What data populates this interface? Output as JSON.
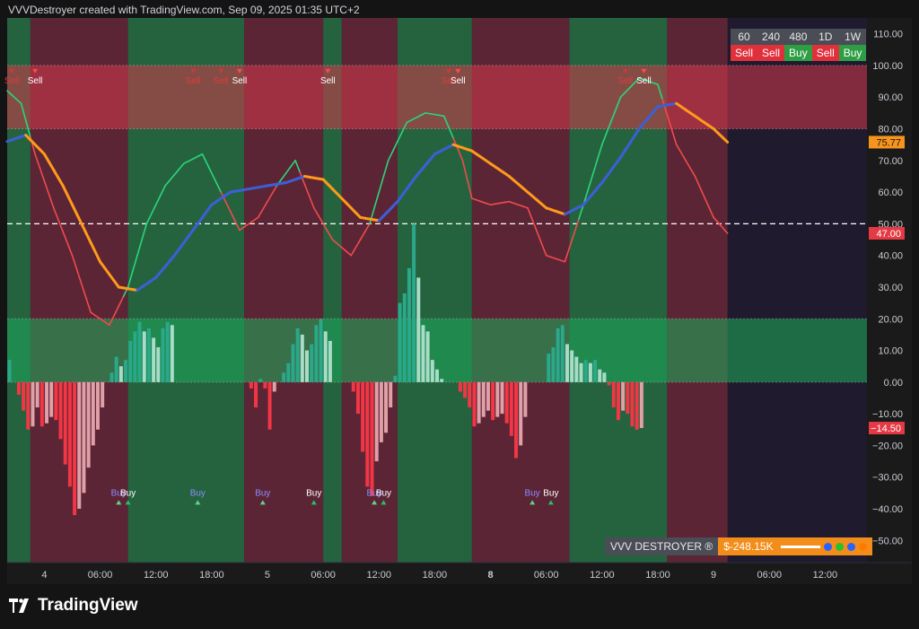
{
  "header": {
    "text": "VVVDestroyer created with TradingView.com, Sep 09, 2025 01:35 UTC+2"
  },
  "brand": {
    "logo_text": "TradingView"
  },
  "timeframes": {
    "labels": [
      "60",
      "240",
      "480",
      "1D",
      "1W"
    ],
    "signals": [
      "Sell",
      "Sell",
      "Buy",
      "Sell",
      "Buy"
    ]
  },
  "badge": {
    "name": "VVV DESTROYER ®",
    "pnl": "$-248.15K"
  },
  "colors": {
    "bg": "#141414",
    "buy_zone": "#25633f",
    "sell_zone": "#5c2535",
    "upper_band": "#a03040",
    "lower_band": "#1e8b4f",
    "fast_line": "#ef4b4b",
    "fast_line_up": "#2ad67a",
    "slow_up": "#3c5fd8",
    "slow_down": "#ff9a1a",
    "hist_pos": "#2aa88a",
    "hist_pos_light": "#a8dcc8",
    "hist_neg": "#f23645",
    "hist_neg_light": "#e0a0a8"
  },
  "chart_data": {
    "type": "line",
    "ylim": [
      -57,
      115
    ],
    "y_ticks": [
      110,
      100,
      90,
      80,
      70,
      60,
      50,
      40,
      30,
      20,
      10,
      0,
      -10,
      -20,
      -30,
      -40,
      -50
    ],
    "y_tick_labels": [
      "110.00",
      "100.00",
      "90.00",
      "80.00",
      "70.00",
      "60.00",
      "50.00",
      "40.00",
      "30.00",
      "20.00",
      "10.00",
      "0.00",
      "−10.00",
      "−20.00",
      "−30.00",
      "−40.00",
      "−50.00"
    ],
    "x_tick_labels": [
      {
        "i": 8,
        "label": "4",
        "bold": false
      },
      {
        "i": 20,
        "label": "06:00",
        "bold": false
      },
      {
        "i": 32,
        "label": "12:00",
        "bold": false
      },
      {
        "i": 44,
        "label": "18:00",
        "bold": false
      },
      {
        "i": 56,
        "label": "5",
        "bold": false
      },
      {
        "i": 68,
        "label": "06:00",
        "bold": false
      },
      {
        "i": 80,
        "label": "12:00",
        "bold": false
      },
      {
        "i": 92,
        "label": "18:00",
        "bold": false
      },
      {
        "i": 104,
        "label": "8",
        "bold": true
      },
      {
        "i": 116,
        "label": "06:00",
        "bold": false
      },
      {
        "i": 128,
        "label": "12:00",
        "bold": false
      },
      {
        "i": 140,
        "label": "18:00",
        "bold": false
      },
      {
        "i": 152,
        "label": "9",
        "bold": false
      },
      {
        "i": 164,
        "label": "06:00",
        "bold": false
      },
      {
        "i": 176,
        "label": "12:00",
        "bold": false
      }
    ],
    "x_count": 185,
    "data_length": 155,
    "bands": {
      "upper": [
        80,
        100
      ],
      "lower": [
        0,
        20
      ],
      "midline": 50
    },
    "zones": [
      {
        "from": 0,
        "to": 5,
        "trend": "up"
      },
      {
        "from": 5,
        "to": 26,
        "trend": "down"
      },
      {
        "from": 26,
        "to": 51,
        "trend": "up"
      },
      {
        "from": 51,
        "to": 68,
        "trend": "down"
      },
      {
        "from": 68,
        "to": 72,
        "trend": "up"
      },
      {
        "from": 72,
        "to": 84,
        "trend": "down"
      },
      {
        "from": 84,
        "to": 100,
        "trend": "up"
      },
      {
        "from": 100,
        "to": 121,
        "trend": "down"
      },
      {
        "from": 121,
        "to": 142,
        "trend": "up"
      },
      {
        "from": 142,
        "to": 155,
        "trend": "down"
      }
    ],
    "series": [
      {
        "name": "",
        "key": "fast",
        "x": [
          0,
          3,
          6,
          10,
          14,
          18,
          22,
          26,
          30,
          34,
          38,
          42,
          46,
          50,
          54,
          58,
          62,
          66,
          70,
          74,
          78,
          82,
          86,
          90,
          94,
          98,
          100,
          104,
          108,
          112,
          116,
          120,
          124,
          128,
          132,
          136,
          140,
          144,
          148,
          152,
          155
        ],
        "values": [
          92,
          88,
          72,
          55,
          40,
          22,
          18,
          30,
          50,
          62,
          69,
          72,
          60,
          48,
          52,
          62,
          70,
          55,
          45,
          40,
          50,
          70,
          82,
          85,
          84,
          70,
          58,
          56,
          57,
          55,
          40,
          38,
          56,
          75,
          90,
          96,
          94,
          75,
          65,
          52,
          47
        ]
      },
      {
        "name": "",
        "key": "slow",
        "x": [
          0,
          4,
          8,
          12,
          16,
          20,
          24,
          28,
          32,
          36,
          40,
          44,
          48,
          52,
          56,
          60,
          64,
          68,
          72,
          76,
          80,
          84,
          88,
          92,
          96,
          100,
          104,
          108,
          112,
          116,
          120,
          124,
          128,
          132,
          136,
          140,
          144,
          148,
          152,
          155
        ],
        "values": [
          76,
          78,
          72,
          62,
          50,
          38,
          30,
          29,
          33,
          40,
          48,
          56,
          60,
          61,
          62,
          63,
          65,
          64,
          58,
          52,
          51,
          57,
          65,
          72,
          75,
          73,
          69,
          65,
          60,
          55,
          53,
          56,
          63,
          71,
          80,
          87,
          88,
          84,
          80,
          75.77
        ]
      },
      {
        "name": "",
        "key": "histogram",
        "values": [
          7,
          0,
          -4,
          -9,
          -15,
          -14,
          -8,
          -14,
          -13,
          -11,
          -12,
          -18,
          -26,
          -33,
          -42,
          -40,
          -35,
          -27,
          -20,
          -15,
          -8,
          0,
          3,
          8,
          5,
          7,
          13,
          16,
          19,
          16,
          17,
          14,
          11,
          17,
          19,
          18,
          0,
          0,
          0,
          0,
          0,
          0,
          0,
          0,
          0,
          0,
          0,
          0,
          0,
          0,
          0,
          0,
          -2,
          -8,
          1,
          -2,
          -15,
          -3,
          0,
          3,
          6,
          12,
          17,
          15,
          10,
          12,
          18,
          20,
          16,
          13,
          0,
          0,
          0,
          0,
          -3,
          -10,
          -22,
          -33,
          -36,
          -25,
          -19,
          -16,
          -8,
          2,
          25,
          28,
          36,
          50,
          33,
          18,
          16,
          7,
          4,
          1,
          0,
          0,
          0,
          -3,
          -5,
          -8,
          -14,
          -13,
          -11,
          -9,
          -12,
          -11,
          -10,
          -13,
          -17,
          -24,
          -20,
          -11,
          0,
          0,
          0,
          0,
          9,
          11,
          17,
          18,
          12,
          10,
          8,
          6,
          7,
          6,
          7,
          4,
          3,
          -1,
          -8,
          -12,
          -9,
          -10,
          -14,
          -15,
          -14.5,
          0,
          0,
          0,
          0,
          0,
          0,
          0,
          0,
          0,
          0,
          0,
          0,
          0,
          0,
          0,
          0,
          0,
          0,
          0,
          0
        ]
      }
    ],
    "last_values": {
      "slow": "75.77",
      "fast": "47.00",
      "histogram": "−14.50"
    },
    "sell_signals": [
      {
        "i": 1,
        "text": "Sell",
        "ghost": true
      },
      {
        "i": 6,
        "text": "Sell",
        "ghost": false
      },
      {
        "i": 40,
        "text": "Sell",
        "ghost": true
      },
      {
        "i": 46,
        "text": "Sell",
        "ghost": true
      },
      {
        "i": 50,
        "text": "Sell",
        "ghost": false
      },
      {
        "i": 69,
        "text": "Sell",
        "ghost": false
      },
      {
        "i": 95,
        "text": "Sell",
        "ghost": true
      },
      {
        "i": 97,
        "text": "Sell",
        "ghost": false
      },
      {
        "i": 133,
        "text": "Sell",
        "ghost": true
      },
      {
        "i": 137,
        "text": "Sell",
        "ghost": false
      }
    ],
    "buy_signals": [
      {
        "i": 24,
        "text": "Buy",
        "ghost": true
      },
      {
        "i": 26,
        "text": "Buy",
        "ghost": false
      },
      {
        "i": 41,
        "text": "Buy",
        "ghost": true
      },
      {
        "i": 55,
        "text": "Buy",
        "ghost": true
      },
      {
        "i": 66,
        "text": "Buy",
        "ghost": false
      },
      {
        "i": 79,
        "text": "Buy",
        "ghost": true
      },
      {
        "i": 81,
        "text": "Buy",
        "ghost": false
      },
      {
        "i": 113,
        "text": "Buy",
        "ghost": true
      },
      {
        "i": 117,
        "text": "Buy",
        "ghost": false
      }
    ]
  }
}
